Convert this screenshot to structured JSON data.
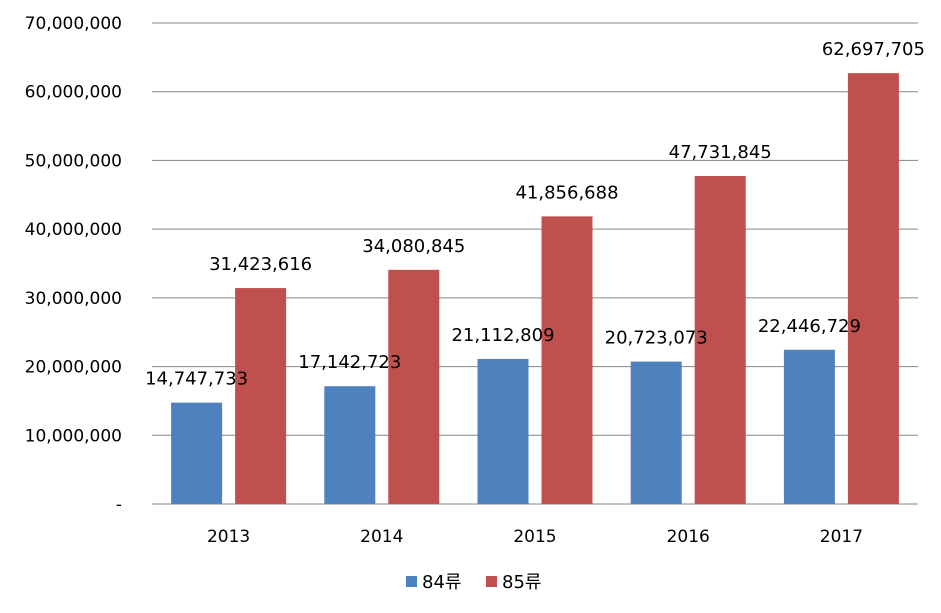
{
  "chart_data": {
    "type": "bar",
    "categories": [
      "2013",
      "2014",
      "2015",
      "2016",
      "2017"
    ],
    "series": [
      {
        "name": "84류",
        "color": "#4F81BD",
        "values": [
          14747733,
          17142723,
          21112809,
          20723073,
          22446729
        ],
        "labels": [
          "14,747,733",
          "17,142,723",
          "21,112,809",
          "20,723,073",
          "22,446,729"
        ]
      },
      {
        "name": "85류",
        "color": "#C0504D",
        "values": [
          31423616,
          34080845,
          41856688,
          47731845,
          62697705
        ],
        "labels": [
          "31,423,616",
          "34,080,845",
          "41,856,688",
          "47,731,845",
          "62,697,705"
        ]
      }
    ],
    "ylim": [
      0,
      70000000
    ],
    "yticks": [
      0,
      10000000,
      20000000,
      30000000,
      40000000,
      50000000,
      60000000,
      70000000
    ],
    "ytick_labels": [
      "-",
      "10,000,000",
      "20,000,000",
      "30,000,000",
      "40,000,000",
      "50,000,000",
      "60,000,000",
      "70,000,000"
    ],
    "grid": true,
    "legend_position": "bottom",
    "title": "",
    "xlabel": "",
    "ylabel": ""
  }
}
